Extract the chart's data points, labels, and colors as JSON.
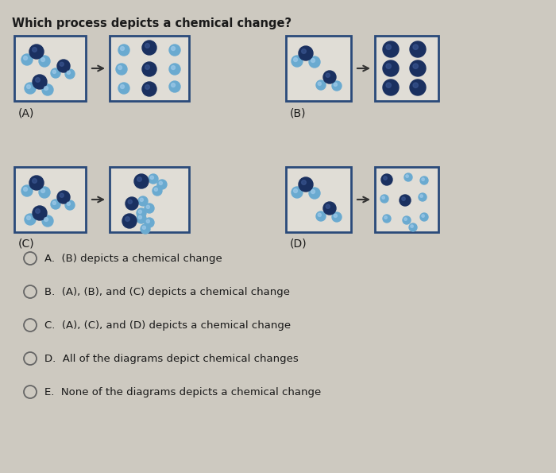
{
  "title": "Which process depicts a chemical change?",
  "bg_color": "#cdc9c0",
  "box_bg": "#e0ddd6",
  "box_edge": "#2a4a7a",
  "text_color": "#1a1a1a",
  "arrow_color": "#333333",
  "atom_dark": "#1a3060",
  "atom_dark_hi": "#3a5590",
  "atom_light": "#6aaad0",
  "atom_light_hi": "#9cc8e8",
  "answer_options": [
    "A.  (B) depicts a chemical change",
    "B.  (A), (B), and (C) depicts a chemical change",
    "C.  (A), (C), and (D) depicts a chemical change",
    "D.  All of the diagrams depict chemical changes",
    "E.  None of the diagrams depicts a chemical change"
  ],
  "labels": [
    "(A)",
    "(B)",
    "(C)",
    "(D)"
  ]
}
